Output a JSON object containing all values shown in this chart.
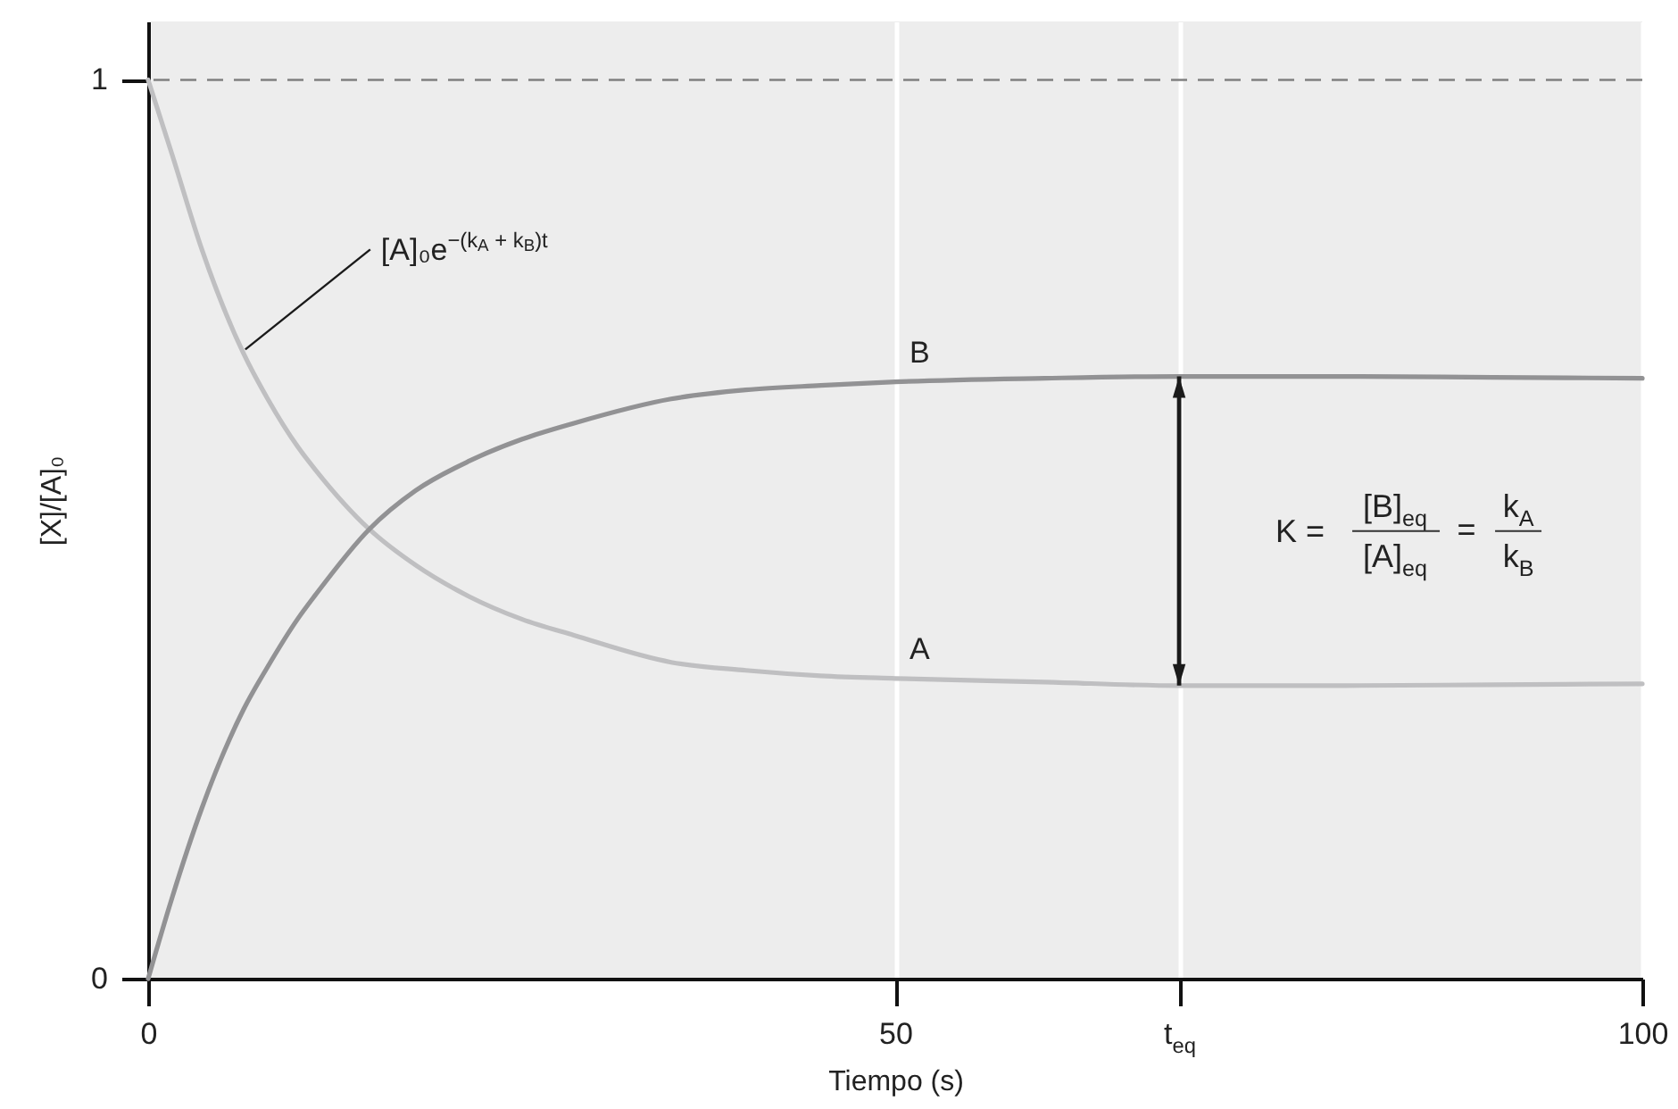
{
  "chart_data": {
    "type": "line",
    "xlabel": "Tiempo (s)",
    "ylabel": "[X]/[A]₀",
    "x": [
      0,
      1.6,
      3.6,
      6.4,
      8,
      10,
      11.2,
      14.8,
      17.9,
      21.5,
      25,
      28.5,
      35,
      40,
      45,
      50,
      60,
      69,
      80,
      90,
      100
    ],
    "series": [
      {
        "name": "A",
        "color": "#bfbfc1",
        "values": [
          1,
          0.917,
          0.811,
          0.695,
          0.645,
          0.592,
          0.566,
          0.5,
          0.46,
          0.425,
          0.4,
          0.382,
          0.352,
          0.343,
          0.337,
          0.334,
          0.33,
          0.326,
          0.326,
          0.327,
          0.328
        ]
      },
      {
        "name": "B",
        "color": "#929294",
        "values": [
          0,
          0.09,
          0.19,
          0.3,
          0.347,
          0.4,
          0.427,
          0.5,
          0.543,
          0.576,
          0.6,
          0.618,
          0.645,
          0.655,
          0.66,
          0.664,
          0.668,
          0.67,
          0.67,
          0.669,
          0.668
        ]
      }
    ],
    "xlim": [
      0,
      100
    ],
    "xticks": [
      0,
      50,
      {
        "value": 69,
        "label": "t$_{eq}$"
      },
      100
    ],
    "ylim": [
      0,
      1.065
    ],
    "yticks": [
      0,
      1
    ],
    "grid": "x",
    "ref_lines": [
      {
        "axis": "y",
        "value": 1,
        "color": "#808080",
        "line_style": "dashed"
      }
    ],
    "annotations": [
      {
        "text": "[A]₀e$^{−(k}$$_{A}$$^{ + k}$$_{B}$$^{)t}$",
        "x": 6.5,
        "y": 0.7
      },
      "K =",
      "[B]$_{eq}$",
      "[A]$_{eq}$",
      "=",
      "k$_{A}$",
      "k$_{B}$"
    ]
  }
}
